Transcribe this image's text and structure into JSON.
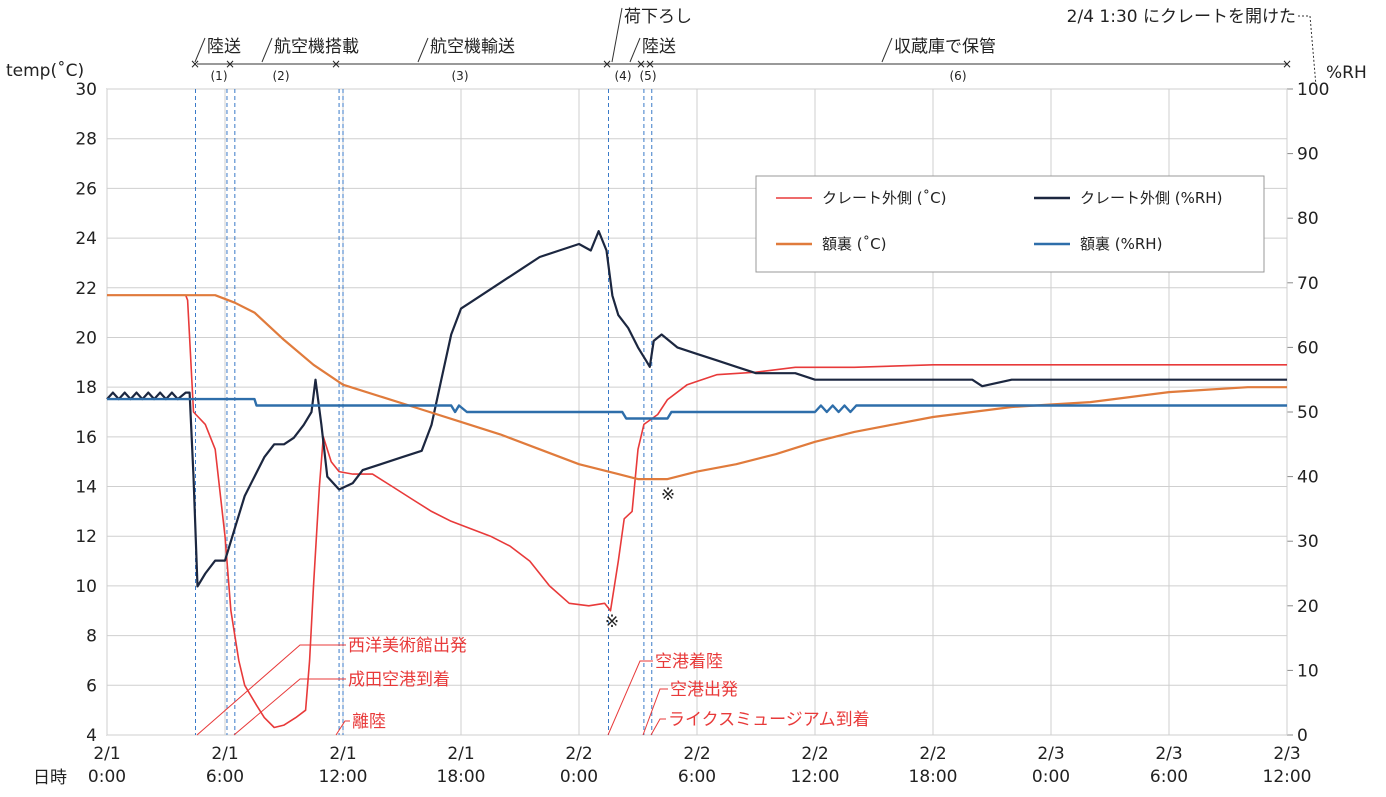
{
  "chart_data": {
    "type": "line",
    "title": "",
    "x_range": [
      "2/1 0:00",
      "2/3 12:00"
    ],
    "x_ticks": [
      {
        "hours": 0,
        "label1": "2/1",
        "label2": "0:00"
      },
      {
        "hours": 6,
        "label1": "2/1",
        "label2": "6:00"
      },
      {
        "hours": 12,
        "label1": "2/1",
        "label2": "12:00"
      },
      {
        "hours": 18,
        "label1": "2/1",
        "label2": "18:00"
      },
      {
        "hours": 24,
        "label1": "2/2",
        "label2": "0:00"
      },
      {
        "hours": 30,
        "label1": "2/2",
        "label2": "6:00"
      },
      {
        "hours": 36,
        "label1": "2/2",
        "label2": "12:00"
      },
      {
        "hours": 42,
        "label1": "2/2",
        "label2": "18:00"
      },
      {
        "hours": 48,
        "label1": "2/3",
        "label2": "0:00"
      },
      {
        "hours": 54,
        "label1": "2/3",
        "label2": "6:00"
      },
      {
        "hours": 60,
        "label1": "2/3",
        "label2": "12:00"
      }
    ],
    "x_axis_label": "日時",
    "y_left": {
      "label": "temp(˚C)",
      "range": [
        4,
        30
      ],
      "ticks": [
        4,
        6,
        8,
        10,
        12,
        14,
        16,
        18,
        20,
        22,
        24,
        26,
        28,
        30
      ]
    },
    "y_right": {
      "label": "%RH",
      "range": [
        0,
        100
      ],
      "ticks": [
        0,
        10,
        20,
        30,
        40,
        50,
        60,
        70,
        80,
        90,
        100
      ]
    },
    "grid": true,
    "legend_position": "upper-right",
    "series": [
      {
        "name": "クレート外側 (˚C)",
        "axis": "left",
        "color": "#e83a3a",
        "points": [
          [
            0,
            21.7
          ],
          [
            4.0,
            21.7
          ],
          [
            4.1,
            21.5
          ],
          [
            4.2,
            20
          ],
          [
            4.4,
            17
          ],
          [
            5.0,
            16.5
          ],
          [
            5.5,
            15.5
          ],
          [
            6.0,
            12
          ],
          [
            6.3,
            9
          ],
          [
            6.7,
            7
          ],
          [
            7.0,
            6
          ],
          [
            7.6,
            5.2
          ],
          [
            8.0,
            4.7
          ],
          [
            8.5,
            4.3
          ],
          [
            9.0,
            4.4
          ],
          [
            9.6,
            4.7
          ],
          [
            10.1,
            5.0
          ],
          [
            10.3,
            7
          ],
          [
            10.5,
            10
          ],
          [
            10.8,
            14
          ],
          [
            11.0,
            16
          ],
          [
            11.4,
            15
          ],
          [
            11.8,
            14.6
          ],
          [
            12.5,
            14.5
          ],
          [
            13.5,
            14.5
          ],
          [
            14.5,
            14.0
          ],
          [
            15.5,
            13.5
          ],
          [
            16.5,
            13.0
          ],
          [
            17.5,
            12.6
          ],
          [
            18.5,
            12.3
          ],
          [
            19.5,
            12.0
          ],
          [
            20.5,
            11.6
          ],
          [
            21.5,
            11.0
          ],
          [
            22.5,
            10.0
          ],
          [
            23.5,
            9.3
          ],
          [
            24.5,
            9.2
          ],
          [
            25.3,
            9.3
          ],
          [
            25.6,
            9.0
          ],
          [
            26.0,
            11
          ],
          [
            26.3,
            12.7
          ],
          [
            26.7,
            13.0
          ],
          [
            27.0,
            15.5
          ],
          [
            27.3,
            16.5
          ],
          [
            28.0,
            16.9
          ],
          [
            28.5,
            17.5
          ],
          [
            29.5,
            18.1
          ],
          [
            31.0,
            18.5
          ],
          [
            33.0,
            18.6
          ],
          [
            35.0,
            18.8
          ],
          [
            38.0,
            18.8
          ],
          [
            42.0,
            18.9
          ],
          [
            48.0,
            18.9
          ],
          [
            54.0,
            18.9
          ],
          [
            60.0,
            18.9
          ]
        ]
      },
      {
        "name": "クレート外側 (%RH)",
        "axis": "right",
        "color": "#1c2740",
        "points": [
          [
            0,
            52
          ],
          [
            0.3,
            53
          ],
          [
            0.6,
            52
          ],
          [
            0.9,
            53
          ],
          [
            1.2,
            52
          ],
          [
            1.5,
            53
          ],
          [
            1.8,
            52
          ],
          [
            2.1,
            53
          ],
          [
            2.4,
            52
          ],
          [
            2.7,
            53
          ],
          [
            3.0,
            52
          ],
          [
            3.3,
            53
          ],
          [
            3.6,
            52
          ],
          [
            4.0,
            53
          ],
          [
            4.2,
            53
          ],
          [
            4.4,
            40
          ],
          [
            4.6,
            23
          ],
          [
            5.0,
            25
          ],
          [
            5.5,
            27
          ],
          [
            6.0,
            27
          ],
          [
            6.5,
            32
          ],
          [
            7.0,
            37
          ],
          [
            7.5,
            40
          ],
          [
            8.0,
            43
          ],
          [
            8.5,
            45
          ],
          [
            9.0,
            45
          ],
          [
            9.5,
            46
          ],
          [
            10.0,
            48
          ],
          [
            10.4,
            50
          ],
          [
            10.6,
            55
          ],
          [
            10.9,
            48
          ],
          [
            11.2,
            40
          ],
          [
            11.8,
            38
          ],
          [
            12.5,
            39
          ],
          [
            13.0,
            41
          ],
          [
            14.0,
            42
          ],
          [
            15.0,
            43
          ],
          [
            16.0,
            44
          ],
          [
            16.5,
            48
          ],
          [
            17.0,
            55
          ],
          [
            17.5,
            62
          ],
          [
            18.0,
            66
          ],
          [
            18.5,
            67
          ],
          [
            19.0,
            68
          ],
          [
            20.0,
            70
          ],
          [
            21.0,
            72
          ],
          [
            22.0,
            74
          ],
          [
            23.0,
            75
          ],
          [
            24.0,
            76
          ],
          [
            24.6,
            75
          ],
          [
            25.0,
            78
          ],
          [
            25.4,
            75
          ],
          [
            25.7,
            68
          ],
          [
            26.0,
            65
          ],
          [
            26.5,
            63
          ],
          [
            27.0,
            60
          ],
          [
            27.4,
            58
          ],
          [
            27.6,
            57
          ],
          [
            27.8,
            61
          ],
          [
            28.2,
            62
          ],
          [
            29.0,
            60
          ],
          [
            30.0,
            59
          ],
          [
            31.0,
            58
          ],
          [
            32.0,
            57
          ],
          [
            33.0,
            56
          ],
          [
            35.0,
            56
          ],
          [
            36.0,
            55
          ],
          [
            39.0,
            55
          ],
          [
            44.0,
            55
          ],
          [
            44.5,
            54
          ],
          [
            46.0,
            55
          ],
          [
            50.0,
            55
          ],
          [
            55.0,
            55
          ],
          [
            60.0,
            55
          ]
        ]
      },
      {
        "name": "額裏 (˚C)",
        "axis": "left",
        "color": "#e07b3c",
        "points": [
          [
            0,
            21.7
          ],
          [
            5.5,
            21.7
          ],
          [
            6.5,
            21.4
          ],
          [
            7.5,
            21.0
          ],
          [
            9.0,
            19.9
          ],
          [
            10.5,
            18.9
          ],
          [
            12.0,
            18.1
          ],
          [
            14.0,
            17.6
          ],
          [
            16.0,
            17.1
          ],
          [
            18.0,
            16.6
          ],
          [
            20.0,
            16.1
          ],
          [
            22.0,
            15.5
          ],
          [
            24.0,
            14.9
          ],
          [
            26.0,
            14.5
          ],
          [
            27.0,
            14.3
          ],
          [
            28.5,
            14.3
          ],
          [
            30.0,
            14.6
          ],
          [
            32.0,
            14.9
          ],
          [
            34.0,
            15.3
          ],
          [
            36.0,
            15.8
          ],
          [
            38.0,
            16.2
          ],
          [
            40.0,
            16.5
          ],
          [
            42.0,
            16.8
          ],
          [
            44.0,
            17.0
          ],
          [
            46.0,
            17.2
          ],
          [
            48.0,
            17.3
          ],
          [
            50.0,
            17.4
          ],
          [
            52.0,
            17.6
          ],
          [
            54.0,
            17.8
          ],
          [
            56.0,
            17.9
          ],
          [
            58.0,
            18.0
          ],
          [
            60.0,
            18.0
          ]
        ]
      },
      {
        "name": "額裏 (%RH)",
        "axis": "right",
        "color": "#2e6eaa",
        "points": [
          [
            0,
            52
          ],
          [
            7.5,
            52
          ],
          [
            7.6,
            51
          ],
          [
            17.5,
            51
          ],
          [
            17.7,
            50
          ],
          [
            17.9,
            51
          ],
          [
            18.3,
            50
          ],
          [
            26.2,
            50
          ],
          [
            26.4,
            49
          ],
          [
            28.5,
            49
          ],
          [
            28.7,
            50
          ],
          [
            36.0,
            50
          ],
          [
            36.3,
            51
          ],
          [
            36.6,
            50
          ],
          [
            36.9,
            51
          ],
          [
            37.2,
            50
          ],
          [
            37.5,
            51
          ],
          [
            37.8,
            50
          ],
          [
            38.1,
            51
          ],
          [
            38.5,
            51
          ],
          [
            60.0,
            51
          ]
        ]
      }
    ],
    "vlines": [
      4.5,
      6.1,
      6.5,
      11.8,
      12.0,
      25.5,
      27.3,
      27.7
    ],
    "phases": [
      {
        "label": "陸送",
        "num": "(1)",
        "from": 0,
        "to": 1.8
      },
      {
        "label": "航空機搭載",
        "num": "(2)",
        "from": 1.8,
        "to": 7.5
      },
      {
        "label": "航空機輸送",
        "num": "(3)",
        "from": 7.5,
        "to": 25.5
      },
      {
        "label": "荷下ろし",
        "num": "(4)",
        "from": 25.5,
        "to": 27.3
      },
      {
        "label": "陸送",
        "num": "(5)",
        "from": 27.3,
        "to": 27.9
      },
      {
        "label": "収蔵庫で保管",
        "num": "(6)",
        "from": 27.9,
        "to": 60
      }
    ],
    "top_note": "2/4 1:30 にクレートを開けた",
    "events": [
      "西洋美術館出発",
      "成田空港到着",
      "離陸",
      "空港着陸",
      "空港出発",
      "ライクスミュージアム到着"
    ],
    "annotation_mark": "※"
  }
}
